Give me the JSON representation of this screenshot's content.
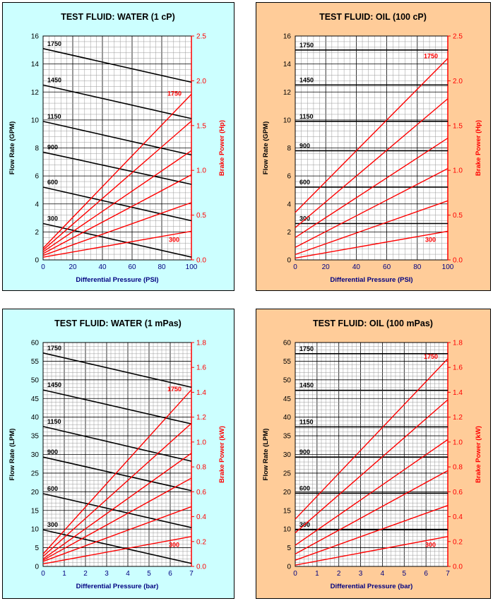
{
  "colors": {
    "water_bg": "#ccffff",
    "oil_bg": "#ffcc99",
    "flow_line": "#000000",
    "power_line": "#ff0000",
    "x_axis_label": "#000080"
  },
  "chart_data": [
    {
      "type": "line",
      "title": "TEST FLUID:  WATER (1 cP)",
      "xlabel": "Differential Pressure (PSI)",
      "ylabel": "Flow Rate (GPM)",
      "y2label": "Brake Power (Hp)",
      "xlim": [
        0,
        100
      ],
      "ylim": [
        0,
        16
      ],
      "y2lim": [
        0,
        2.5
      ],
      "xticks": [
        "0",
        "20",
        "40",
        "60",
        "80",
        "100"
      ],
      "yticks": [
        "0",
        "2",
        "4",
        "6",
        "8",
        "10",
        "12",
        "14",
        "16"
      ],
      "y2ticks": [
        "0.0",
        "0.5",
        "1.0",
        "1.5",
        "2.0",
        "2.5"
      ],
      "grid": true,
      "flow_series": [
        {
          "name": "1750",
          "x": [
            0,
            100
          ],
          "y": [
            15.1,
            12.7
          ]
        },
        {
          "name": "1450",
          "x": [
            0,
            100
          ],
          "y": [
            12.5,
            10.1
          ]
        },
        {
          "name": "1150",
          "x": [
            0,
            100
          ],
          "y": [
            9.9,
            7.5
          ]
        },
        {
          "name": "900",
          "x": [
            0,
            100
          ],
          "y": [
            7.7,
            5.4
          ]
        },
        {
          "name": "600",
          "x": [
            0,
            100
          ],
          "y": [
            5.2,
            2.8
          ]
        },
        {
          "name": "300",
          "x": [
            0,
            100
          ],
          "y": [
            2.6,
            0.2
          ]
        }
      ],
      "power_series": [
        {
          "name": "1750",
          "x": [
            0,
            100
          ],
          "y": [
            0.13,
            1.85
          ]
        },
        {
          "name": "",
          "x": [
            0,
            100
          ],
          "y": [
            0.11,
            1.55
          ]
        },
        {
          "name": "",
          "x": [
            0,
            100
          ],
          "y": [
            0.09,
            1.22
          ]
        },
        {
          "name": "",
          "x": [
            0,
            100
          ],
          "y": [
            0.07,
            0.95
          ]
        },
        {
          "name": "",
          "x": [
            0,
            100
          ],
          "y": [
            0.05,
            0.64
          ]
        },
        {
          "name": "300",
          "x": [
            0,
            100
          ],
          "y": [
            0.03,
            0.32
          ]
        }
      ]
    },
    {
      "type": "line",
      "title": "TEST FLUID:  OIL (100 cP)",
      "xlabel": "Differential Pressure (PSI)",
      "ylabel": "Flow Rate (GPM)",
      "y2label": "Brake Power (Hp)",
      "xlim": [
        0,
        100
      ],
      "ylim": [
        0,
        16
      ],
      "y2lim": [
        0,
        2.5
      ],
      "xticks": [
        "0",
        "20",
        "40",
        "60",
        "80",
        "100"
      ],
      "yticks": [
        "0",
        "2",
        "4",
        "6",
        "8",
        "10",
        "12",
        "14",
        "16"
      ],
      "y2ticks": [
        "0.0",
        "0.5",
        "1.0",
        "1.5",
        "2.0",
        "2.5"
      ],
      "grid": true,
      "flow_series": [
        {
          "name": "1750",
          "x": [
            0,
            100
          ],
          "y": [
            15.0,
            15.0
          ]
        },
        {
          "name": "1450",
          "x": [
            0,
            100
          ],
          "y": [
            12.5,
            12.5
          ]
        },
        {
          "name": "1150",
          "x": [
            0,
            100
          ],
          "y": [
            9.9,
            9.9
          ]
        },
        {
          "name": "900",
          "x": [
            0,
            100
          ],
          "y": [
            7.8,
            7.8
          ]
        },
        {
          "name": "600",
          "x": [
            0,
            100
          ],
          "y": [
            5.2,
            5.2
          ]
        },
        {
          "name": "300",
          "x": [
            0,
            100
          ],
          "y": [
            2.6,
            2.6
          ]
        }
      ],
      "power_series": [
        {
          "name": "1750",
          "x": [
            0,
            100
          ],
          "y": [
            0.53,
            2.25
          ]
        },
        {
          "name": "",
          "x": [
            0,
            100
          ],
          "y": [
            0.36,
            1.8
          ]
        },
        {
          "name": "",
          "x": [
            0,
            100
          ],
          "y": [
            0.25,
            1.36
          ]
        },
        {
          "name": "",
          "x": [
            0,
            100
          ],
          "y": [
            0.14,
            1.02
          ]
        },
        {
          "name": "",
          "x": [
            0,
            100
          ],
          "y": [
            0.06,
            0.66
          ]
        },
        {
          "name": "300",
          "x": [
            0,
            100
          ],
          "y": [
            0.02,
            0.32
          ]
        }
      ]
    },
    {
      "type": "line",
      "title": "TEST FLUID:  WATER (1 mPas)",
      "xlabel": "Differential Pressure (bar)",
      "ylabel": "Flow Rate (LPM)",
      "y2label": "Brake Power (kW)",
      "xlim": [
        0,
        7
      ],
      "ylim": [
        0,
        60
      ],
      "y2lim": [
        0,
        1.8
      ],
      "xticks": [
        "0",
        "1",
        "2",
        "3",
        "4",
        "5",
        "6",
        "7"
      ],
      "yticks": [
        "0",
        "5",
        "10",
        "15",
        "20",
        "25",
        "30",
        "35",
        "40",
        "45",
        "50",
        "55",
        "60"
      ],
      "y2ticks": [
        "0.0",
        "0.2",
        "0.4",
        "0.6",
        "0.8",
        "1.0",
        "1.2",
        "1.4",
        "1.6",
        "1.8"
      ],
      "grid": true,
      "flow_series": [
        {
          "name": "1750",
          "x": [
            0,
            7
          ],
          "y": [
            57.2,
            48.0
          ]
        },
        {
          "name": "1450",
          "x": [
            0,
            7
          ],
          "y": [
            47.3,
            38.2
          ]
        },
        {
          "name": "1150",
          "x": [
            0,
            7
          ],
          "y": [
            37.5,
            28.2
          ]
        },
        {
          "name": "900",
          "x": [
            0,
            7
          ],
          "y": [
            29.3,
            20.3
          ]
        },
        {
          "name": "600",
          "x": [
            0,
            7
          ],
          "y": [
            19.5,
            10.4
          ]
        },
        {
          "name": "300",
          "x": [
            0,
            7
          ],
          "y": [
            9.8,
            0.8
          ]
        }
      ],
      "power_series": [
        {
          "name": "1750",
          "x": [
            0,
            7
          ],
          "y": [
            0.1,
            1.42
          ]
        },
        {
          "name": "",
          "x": [
            0,
            7
          ],
          "y": [
            0.08,
            1.15
          ]
        },
        {
          "name": "",
          "x": [
            0,
            7
          ],
          "y": [
            0.06,
            0.91
          ]
        },
        {
          "name": "",
          "x": [
            0,
            7
          ],
          "y": [
            0.05,
            0.71
          ]
        },
        {
          "name": "",
          "x": [
            0,
            7
          ],
          "y": [
            0.04,
            0.48
          ]
        },
        {
          "name": "300",
          "x": [
            0,
            7
          ],
          "y": [
            0.02,
            0.24
          ]
        }
      ]
    },
    {
      "type": "line",
      "title": "TEST FLUID:  OIL (100 mPas)",
      "xlabel": "Differential Pressure (bar)",
      "ylabel": "Flow Rate (LPM)",
      "y2label": "Brake Power (kW)",
      "xlim": [
        0,
        7
      ],
      "ylim": [
        0,
        60
      ],
      "y2lim": [
        0,
        1.8
      ],
      "xticks": [
        "0",
        "1",
        "2",
        "3",
        "4",
        "5",
        "6",
        "7"
      ],
      "yticks": [
        "0",
        "5",
        "10",
        "15",
        "20",
        "25",
        "30",
        "35",
        "40",
        "45",
        "50",
        "55",
        "60"
      ],
      "y2ticks": [
        "0.0",
        "0.2",
        "0.4",
        "0.6",
        "0.8",
        "1.0",
        "1.2",
        "1.4",
        "1.6",
        "1.8"
      ],
      "grid": true,
      "flow_series": [
        {
          "name": "1750",
          "x": [
            0,
            7
          ],
          "y": [
            57.0,
            57.0
          ]
        },
        {
          "name": "1450",
          "x": [
            0,
            7
          ],
          "y": [
            47.2,
            47.2
          ]
        },
        {
          "name": "1150",
          "x": [
            0,
            7
          ],
          "y": [
            37.4,
            37.4
          ]
        },
        {
          "name": "900",
          "x": [
            0,
            7
          ],
          "y": [
            29.3,
            29.3
          ]
        },
        {
          "name": "600",
          "x": [
            0,
            7
          ],
          "y": [
            19.6,
            19.6
          ]
        },
        {
          "name": "300",
          "x": [
            0,
            7
          ],
          "y": [
            9.8,
            9.8
          ]
        }
      ],
      "power_series": [
        {
          "name": "1750",
          "x": [
            0,
            7
          ],
          "y": [
            0.38,
            1.67
          ]
        },
        {
          "name": "",
          "x": [
            0,
            7
          ],
          "y": [
            0.27,
            1.34
          ]
        },
        {
          "name": "",
          "x": [
            0,
            7
          ],
          "y": [
            0.17,
            1.02
          ]
        },
        {
          "name": "",
          "x": [
            0,
            7
          ],
          "y": [
            0.1,
            0.77
          ]
        },
        {
          "name": "",
          "x": [
            0,
            7
          ],
          "y": [
            0.05,
            0.49
          ]
        },
        {
          "name": "300",
          "x": [
            0,
            7
          ],
          "y": [
            0.01,
            0.24
          ]
        }
      ]
    }
  ]
}
